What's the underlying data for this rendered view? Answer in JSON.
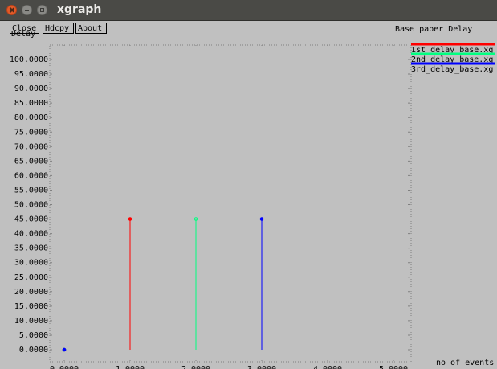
{
  "window": {
    "title": "xgraph",
    "buttons": {
      "close": "Close",
      "hdcpy": "Hdcpy",
      "about": "About"
    }
  },
  "chart_data": {
    "type": "bar",
    "title": "Base paper Delay",
    "ylabel": "Delay",
    "xlabel": "no of events",
    "ylim": [
      0,
      100
    ],
    "yticks": [
      "0.0000",
      "5.0000",
      "10.0000",
      "15.0000",
      "20.0000",
      "25.0000",
      "30.0000",
      "35.0000",
      "40.0000",
      "45.0000",
      "50.0000",
      "55.0000",
      "60.0000",
      "65.0000",
      "70.0000",
      "75.0000",
      "80.0000",
      "85.0000",
      "90.0000",
      "95.0000",
      "100.0000"
    ],
    "xlim": [
      0,
      5
    ],
    "xticks": [
      "0.0000",
      "1.0000",
      "2.0000",
      "3.0000",
      "4.0000",
      "5.0000"
    ],
    "series": [
      {
        "name": "1st_delay_base.xg",
        "color": "#ff0000",
        "points": [
          [
            0,
            0
          ],
          [
            1,
            45
          ]
        ]
      },
      {
        "name": "2nd_delay_base.xg",
        "color": "#00ff80",
        "points": [
          [
            0,
            0
          ],
          [
            2,
            45
          ]
        ]
      },
      {
        "name": "3rd_delay_base.xg",
        "color": "#0000ff",
        "points": [
          [
            0,
            0
          ],
          [
            3,
            45
          ]
        ]
      }
    ],
    "grid": false,
    "legend": "right"
  }
}
